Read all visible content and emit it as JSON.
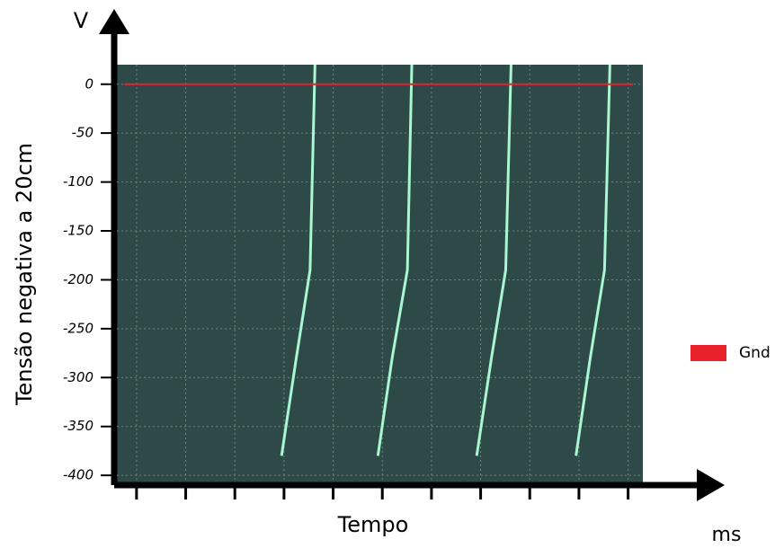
{
  "chart_data": {
    "type": "line",
    "y_axis_symbol": "V",
    "ylabel": "Tensão negativa a 20cm",
    "xlabel": "Tempo",
    "x_unit": "ms",
    "xlim": [
      -0.4,
      10.3
    ],
    "xticks": [
      0,
      1,
      2,
      3,
      4,
      5,
      6,
      7,
      8,
      9,
      10
    ],
    "ylim": [
      -410,
      20
    ],
    "yticks": [
      0,
      -50,
      -100,
      -150,
      -200,
      -250,
      -300,
      -350,
      -400
    ],
    "grid": true,
    "legend": "right",
    "series": [
      {
        "color": "#a8f7d2",
        "x": [
          2.95,
          3.25,
          3.53,
          3.63,
          null,
          4.91,
          5.2,
          5.51,
          5.6,
          null,
          6.92,
          7.22,
          7.51,
          7.62,
          null,
          8.94,
          9.23,
          9.52,
          9.63
        ],
        "values": [
          -380,
          -280,
          -190,
          20,
          null,
          -380,
          -280,
          -190,
          20,
          null,
          -380,
          -280,
          -190,
          20,
          null,
          -380,
          -280,
          -190,
          20
        ]
      },
      {
        "name": "Gnd",
        "color": "#e8212a",
        "x": [
          -0.25,
          10.1
        ],
        "values": [
          0,
          0
        ]
      }
    ]
  }
}
